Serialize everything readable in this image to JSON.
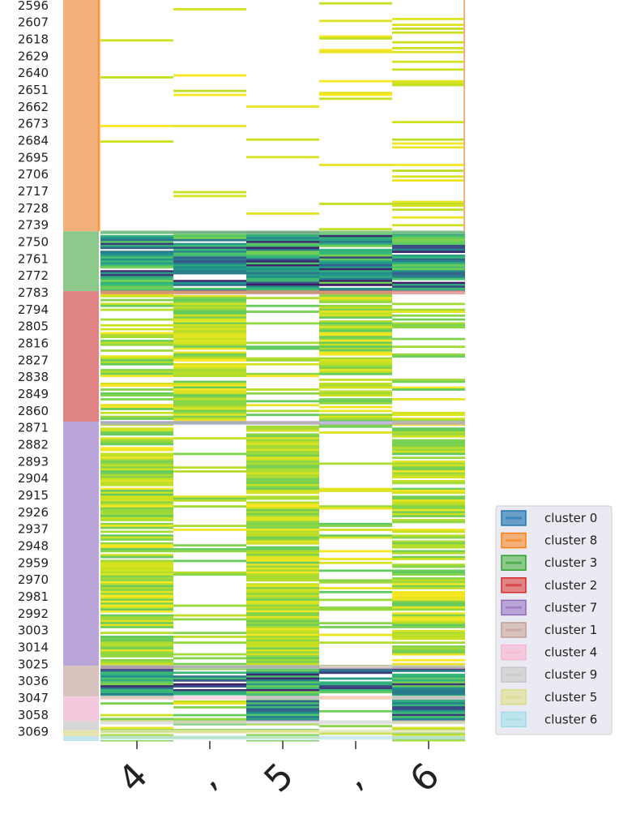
{
  "chart_data": {
    "type": "heatmap",
    "title": "",
    "xlabel": "",
    "ylabel": "",
    "columns": [
      "4",
      ",",
      "5",
      ",",
      "6"
    ],
    "row_range": [
      2585,
      3075
    ],
    "row_tick_labels": [
      "2596",
      "2607",
      "2618",
      "2629",
      "2640",
      "2651",
      "2662",
      "2673",
      "2684",
      "2695",
      "2706",
      "2717",
      "2728",
      "2739",
      "2750",
      "2761",
      "2772",
      "2783",
      "2794",
      "2805",
      "2816",
      "2827",
      "2838",
      "2849",
      "2860",
      "2871",
      "2882",
      "2893",
      "2904",
      "2915",
      "2926",
      "2937",
      "2948",
      "2959",
      "2970",
      "2981",
      "2992",
      "3003",
      "3014",
      "3025",
      "3036",
      "3047",
      "3058",
      "3069"
    ],
    "colormap": "viridis",
    "grid": false,
    "legend_position": "right",
    "cluster_blocks": [
      {
        "cluster": "cluster 8",
        "start": 2585,
        "end": 2743
      },
      {
        "cluster": "cluster 3",
        "start": 2743,
        "end": 2782
      },
      {
        "cluster": "cluster 2",
        "start": 2782,
        "end": 2867
      },
      {
        "cluster": "cluster 7",
        "start": 2867,
        "end": 3026
      },
      {
        "cluster": "cluster 1",
        "start": 3026,
        "end": 3046
      },
      {
        "cluster": "cluster 4",
        "start": 3046,
        "end": 3062
      },
      {
        "cluster": "cluster 9",
        "start": 3062,
        "end": 3068
      },
      {
        "cluster": "cluster 5",
        "start": 3068,
        "end": 3072
      },
      {
        "cluster": "cluster 6",
        "start": 3072,
        "end": 3075
      }
    ],
    "column_fill_by_cluster": {
      "cluster 8": [
        0.05,
        0.1,
        0.05,
        0.12,
        0.15
      ],
      "cluster 3": [
        0.95,
        0.8,
        1.0,
        0.85,
        0.95
      ],
      "cluster 2": [
        0.5,
        0.9,
        0.35,
        0.85,
        0.3
      ],
      "cluster 7": [
        0.85,
        0.2,
        0.95,
        0.25,
        0.75
      ],
      "cluster 1": [
        1.0,
        0.7,
        1.0,
        0.6,
        0.9
      ],
      "cluster 4": [
        0.6,
        0.3,
        1.0,
        0.35,
        1.0
      ],
      "cluster 9": [
        0.5,
        0.5,
        0.5,
        0.5,
        0.5
      ],
      "cluster 5": [
        0.5,
        0.5,
        0.5,
        0.5,
        0.5
      ],
      "cluster 6": [
        0.5,
        0.5,
        0.5,
        0.5,
        0.5
      ]
    },
    "legend": [
      {
        "label": "cluster 0",
        "color": "#1f77b4"
      },
      {
        "label": "cluster 8",
        "color": "#ff7f0e"
      },
      {
        "label": "cluster 3",
        "color": "#2ca02c"
      },
      {
        "label": "cluster 2",
        "color": "#d62728"
      },
      {
        "label": "cluster 7",
        "color": "#9467bd"
      },
      {
        "label": "cluster 1",
        "color": "#c49c94"
      },
      {
        "label": "cluster 4",
        "color": "#f7b6d2"
      },
      {
        "label": "cluster 9",
        "color": "#c7c7c7"
      },
      {
        "label": "cluster 5",
        "color": "#dbdb8d"
      },
      {
        "label": "cluster 6",
        "color": "#9edae5"
      }
    ],
    "cluster_colors": {
      "cluster 0": "#6a9fc8",
      "cluster 8": "#f4b07b",
      "cluster 3": "#8ec98c",
      "cluster 2": "#e08384",
      "cluster 7": "#b9a5d8",
      "cluster 1": "#d8c2be",
      "cluster 4": "#f5c9dd",
      "cluster 9": "#d6d6d6",
      "cluster 5": "#e4e4b2",
      "cluster 6": "#bfe6ee"
    }
  }
}
